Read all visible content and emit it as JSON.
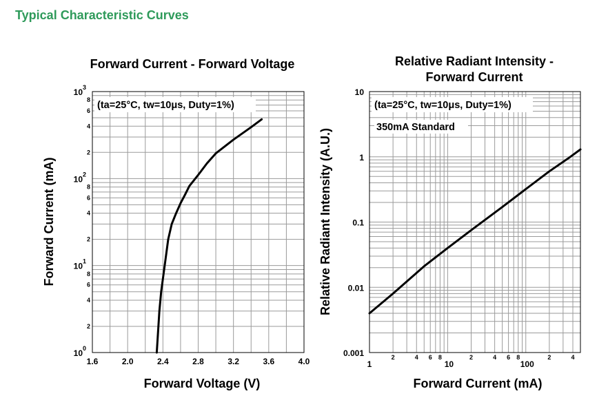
{
  "page": {
    "heading": "Typical Characteristic Curves"
  },
  "chart_data": [
    {
      "type": "line",
      "title": "Forward Current - Forward Voltage",
      "xlabel": "Forward Voltage (V)",
      "ylabel": "Forward Current (mA)",
      "xscale": "linear",
      "yscale": "log",
      "xlim": [
        1.6,
        4.0
      ],
      "ylim": [
        1,
        1000
      ],
      "x_ticks": [
        "1.6",
        "2.0",
        "2.4",
        "2.8",
        "3.2",
        "3.6",
        "4.0"
      ],
      "y_ticks": [
        {
          "base": "10",
          "exp": "0"
        },
        {
          "base": "10",
          "exp": "1"
        },
        {
          "base": "10",
          "exp": "2"
        },
        {
          "base": "10",
          "exp": "3"
        }
      ],
      "y_minor_labels": [
        "2",
        "4",
        "6",
        "8"
      ],
      "annotations": [
        "(ta=25°C, tw=10μs, Duty=1%)"
      ],
      "grid": true,
      "series": [
        {
          "x": [
            2.33,
            2.36,
            2.38,
            2.42,
            2.46,
            2.5,
            2.55,
            2.6,
            2.65,
            2.7,
            2.8,
            2.9,
            3.0,
            3.2,
            3.4,
            3.52
          ],
          "y": [
            1,
            3,
            5,
            10,
            20,
            30,
            40,
            52,
            65,
            82,
            110,
            150,
            195,
            280,
            390,
            480
          ]
        }
      ]
    },
    {
      "type": "line",
      "title": "Relative Radiant Intensity - Forward Current",
      "title_lines": [
        "Relative Radiant Intensity -",
        "Forward Current"
      ],
      "xlabel": "Forward Current (mA)",
      "ylabel": "Relative Radiant Intensity (A.U.)",
      "xscale": "log",
      "yscale": "log",
      "xlim": [
        1,
        500
      ],
      "ylim": [
        0.001,
        10
      ],
      "x_ticks": [
        "1",
        "10",
        "100"
      ],
      "x_minor_labels": [
        "2",
        "4",
        "6",
        "8"
      ],
      "y_ticks": [
        "0.001",
        "0.01",
        "0.1",
        "1",
        "10"
      ],
      "annotations": [
        "(ta=25°C, tw=10μs, Duty=1%)",
        "350mA Standard"
      ],
      "grid": true,
      "series": [
        {
          "x": [
            1,
            2,
            5,
            10,
            20,
            50,
            100,
            200,
            350,
            500
          ],
          "y": [
            0.004,
            0.008,
            0.021,
            0.04,
            0.075,
            0.17,
            0.32,
            0.6,
            0.95,
            1.3
          ]
        }
      ]
    }
  ]
}
